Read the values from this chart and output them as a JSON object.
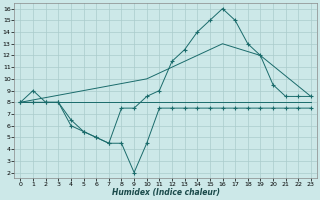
{
  "xlabel": "Humidex (Indice chaleur)",
  "background_color": "#cce8e8",
  "grid_color": "#aacccc",
  "line_color": "#1a6b6b",
  "xlim": [
    -0.5,
    23.5
  ],
  "ylim": [
    1.5,
    16.5
  ],
  "xticks": [
    0,
    1,
    2,
    3,
    4,
    5,
    6,
    7,
    8,
    9,
    10,
    11,
    12,
    13,
    14,
    15,
    16,
    17,
    18,
    19,
    20,
    21,
    22,
    23
  ],
  "yticks": [
    2,
    3,
    4,
    5,
    6,
    7,
    8,
    9,
    10,
    11,
    12,
    13,
    14,
    15,
    16
  ],
  "line1_x": [
    0,
    1,
    2,
    3,
    4,
    5,
    6,
    7,
    8,
    9,
    10,
    11,
    12,
    13,
    14,
    15,
    16,
    17,
    18,
    19,
    20,
    21,
    22,
    23
  ],
  "line1_y": [
    8,
    9,
    8,
    8,
    6,
    5.5,
    5,
    4.5,
    7.5,
    7.5,
    8.5,
    9,
    11.5,
    12.5,
    14,
    15,
    16,
    15,
    13,
    12,
    9.5,
    8.5,
    8.5,
    8.5
  ],
  "line2_x": [
    0,
    1,
    2,
    3,
    4,
    5,
    6,
    7,
    8,
    9,
    10,
    11,
    12,
    13,
    14,
    15,
    16,
    17,
    18,
    19,
    20,
    21,
    22,
    23
  ],
  "line2_y": [
    8,
    8,
    8,
    8,
    6.5,
    5.5,
    5,
    4.5,
    4.5,
    2,
    4.5,
    7.5,
    7.5,
    7.5,
    7.5,
    7.5,
    7.5,
    7.5,
    7.5,
    7.5,
    7.5,
    7.5,
    7.5,
    7.5
  ],
  "line3_x": [
    0,
    10,
    16,
    19,
    23
  ],
  "line3_y": [
    8,
    10,
    13,
    12,
    8.5
  ],
  "line4_x": [
    0,
    10,
    19,
    23
  ],
  "line4_y": [
    8,
    8,
    8,
    8
  ]
}
